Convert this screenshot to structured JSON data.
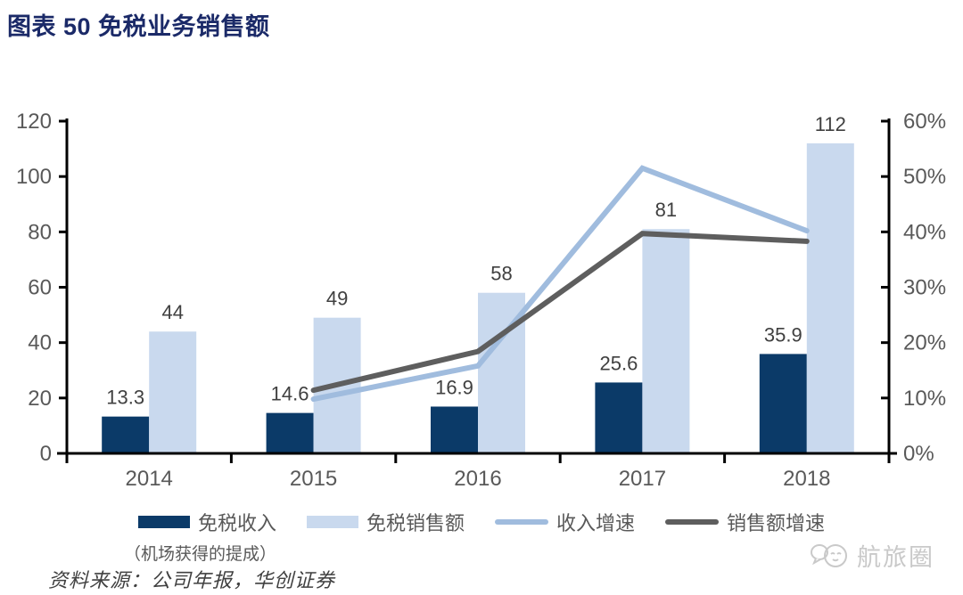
{
  "page": {
    "title": "图表 50 免税业务销售额",
    "source": "资料来源：公司年报，华创证券",
    "watermark": "航旅圈"
  },
  "colors": {
    "title": "#1b2a68",
    "bar_duty_free_revenue": "#0b3a68",
    "bar_duty_free_sales": "#c9d9ee",
    "line_revenue_growth": "#a0bcde",
    "line_sales_growth": "#5e5e5e",
    "axis_line": "#000000",
    "tick_label": "#595959",
    "data_label": "#404040",
    "watermark": "#c9c9c9"
  },
  "legend": {
    "items": [
      {
        "label": "免税收入",
        "sublabel": "（机场获得的提成）",
        "swatch": "bar",
        "color": "#0b3a68"
      },
      {
        "label": "免税销售额",
        "swatch": "bar",
        "color": "#c9d9ee"
      },
      {
        "label": "收入增速",
        "swatch": "line",
        "color": "#a0bcde"
      },
      {
        "label": "销售额增速",
        "swatch": "line",
        "color": "#5e5e5e"
      }
    ]
  },
  "chart_data": {
    "type": "combo-bar-line",
    "title": "图表 50 免税业务销售额",
    "categories": [
      "2014",
      "2015",
      "2016",
      "2017",
      "2018"
    ],
    "bar_series": [
      {
        "name": "免税收入",
        "note": "（机场获得的提成）",
        "color": "#0b3a68",
        "axis": "left",
        "values": [
          13.3,
          14.6,
          16.9,
          25.6,
          35.9
        ],
        "labels": [
          "13.3",
          "14.6",
          "16.9",
          "25.6",
          "35.9"
        ]
      },
      {
        "name": "免税销售额",
        "color": "#c9d9ee",
        "axis": "left",
        "values": [
          44,
          49,
          58,
          81,
          112
        ],
        "labels": [
          "44",
          "49",
          "58",
          "81",
          "112"
        ]
      }
    ],
    "line_series": [
      {
        "name": "收入增速",
        "color": "#a0bcde",
        "axis": "right",
        "x": [
          "2015",
          "2016",
          "2017",
          "2018"
        ],
        "values": [
          9.8,
          15.8,
          51.5,
          40.2
        ]
      },
      {
        "name": "销售额增速",
        "color": "#5e5e5e",
        "axis": "right",
        "x": [
          "2015",
          "2016",
          "2017",
          "2018"
        ],
        "values": [
          11.4,
          18.4,
          39.7,
          38.3
        ]
      }
    ],
    "left_axis": {
      "min": 0,
      "max": 120,
      "step": 20,
      "ticks": [
        "0",
        "20",
        "40",
        "60",
        "80",
        "100",
        "120"
      ]
    },
    "right_axis": {
      "min": 0,
      "max": 60,
      "step": 10,
      "ticks": [
        "0%",
        "10%",
        "20%",
        "30%",
        "40%",
        "50%",
        "60%"
      ]
    },
    "grid": false,
    "legend_position": "bottom"
  }
}
